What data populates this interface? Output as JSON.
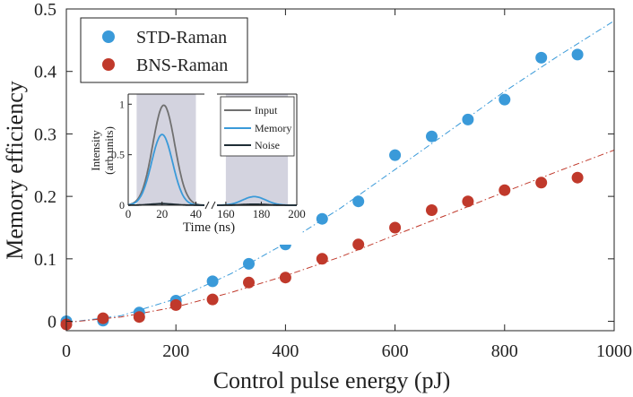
{
  "chart_data": {
    "type": "scatter",
    "xlabel": "Control pulse energy (pJ)",
    "ylabel": "Memory efficiency",
    "xlim": [
      0,
      1000
    ],
    "ylim": [
      -0.015,
      0.5
    ],
    "x_ticks": [
      0,
      200,
      400,
      600,
      800,
      1000
    ],
    "y_ticks": [
      0,
      0.1,
      0.2,
      0.3,
      0.4,
      0.5
    ],
    "x_tick_labels": [
      "0",
      "200",
      "400",
      "600",
      "800",
      "1000"
    ],
    "y_tick_labels": [
      "0",
      "0.1",
      "0.2",
      "0.3",
      "0.4",
      "0.5"
    ],
    "legend_position": "top-left",
    "series": [
      {
        "name": "STD-Raman",
        "color": "#3a9ad9",
        "points": [
          [
            0,
            0.0
          ],
          [
            67,
            0.001
          ],
          [
            133,
            0.014
          ],
          [
            200,
            0.033
          ],
          [
            267,
            0.064
          ],
          [
            333,
            0.092
          ],
          [
            400,
            0.123
          ],
          [
            467,
            0.164
          ],
          [
            533,
            0.192
          ],
          [
            600,
            0.266
          ],
          [
            667,
            0.296
          ],
          [
            733,
            0.323
          ],
          [
            800,
            0.355
          ],
          [
            867,
            0.422
          ],
          [
            933,
            0.427
          ]
        ],
        "fit": [
          [
            0,
            -0.002
          ],
          [
            100,
            0.009
          ],
          [
            200,
            0.036
          ],
          [
            300,
            0.076
          ],
          [
            400,
            0.125
          ],
          [
            500,
            0.181
          ],
          [
            600,
            0.243
          ],
          [
            700,
            0.305
          ],
          [
            800,
            0.368
          ],
          [
            900,
            0.426
          ],
          [
            1000,
            0.481
          ]
        ]
      },
      {
        "name": "BNS-Raman",
        "color": "#c0392b",
        "points": [
          [
            0,
            -0.005
          ],
          [
            67,
            0.005
          ],
          [
            133,
            0.007
          ],
          [
            200,
            0.026
          ],
          [
            267,
            0.035
          ],
          [
            333,
            0.062
          ],
          [
            400,
            0.07
          ],
          [
            467,
            0.1
          ],
          [
            533,
            0.123
          ],
          [
            600,
            0.15
          ],
          [
            667,
            0.178
          ],
          [
            733,
            0.192
          ],
          [
            800,
            0.21
          ],
          [
            867,
            0.222
          ],
          [
            933,
            0.23
          ]
        ],
        "fit": [
          [
            0,
            -0.002
          ],
          [
            100,
            0.007
          ],
          [
            200,
            0.023
          ],
          [
            300,
            0.046
          ],
          [
            400,
            0.073
          ],
          [
            500,
            0.103
          ],
          [
            600,
            0.138
          ],
          [
            700,
            0.172
          ],
          [
            800,
            0.207
          ],
          [
            900,
            0.241
          ],
          [
            1000,
            0.274
          ]
        ]
      }
    ],
    "inset": {
      "type": "line",
      "xlabel": "Time (ns)",
      "ylabel_line1": "Intensity",
      "ylabel_line2": "(arb units)",
      "x_tick_labels": [
        "0",
        "20",
        "40",
        "160",
        "180",
        "200"
      ],
      "y_tick_labels": [
        "0",
        "0.5",
        "1"
      ],
      "ylim": [
        0,
        1.1
      ],
      "segments": [
        [
          0,
          45
        ],
        [
          155,
          200
        ]
      ],
      "shaded_regions": [
        [
          5,
          40
        ],
        [
          160,
          195
        ]
      ],
      "series": [
        {
          "name": "Input",
          "color": "#707070",
          "peaks": [
            {
              "center": 21,
              "amplitude": 0.99,
              "sigma": 6.5
            }
          ]
        },
        {
          "name": "Memory",
          "color": "#3a9ad9",
          "peaks": [
            {
              "center": 20,
              "amplitude": 0.7,
              "sigma": 6.2
            },
            {
              "center": 176,
              "amplitude": 0.085,
              "sigma": 6.5
            }
          ]
        },
        {
          "name": "Noise",
          "color": "#1f2e36",
          "peaks": [
            {
              "center": 20,
              "amplitude": 0.015,
              "sigma": 7
            },
            {
              "center": 176,
              "amplitude": 0.01,
              "sigma": 7
            }
          ]
        }
      ]
    }
  }
}
